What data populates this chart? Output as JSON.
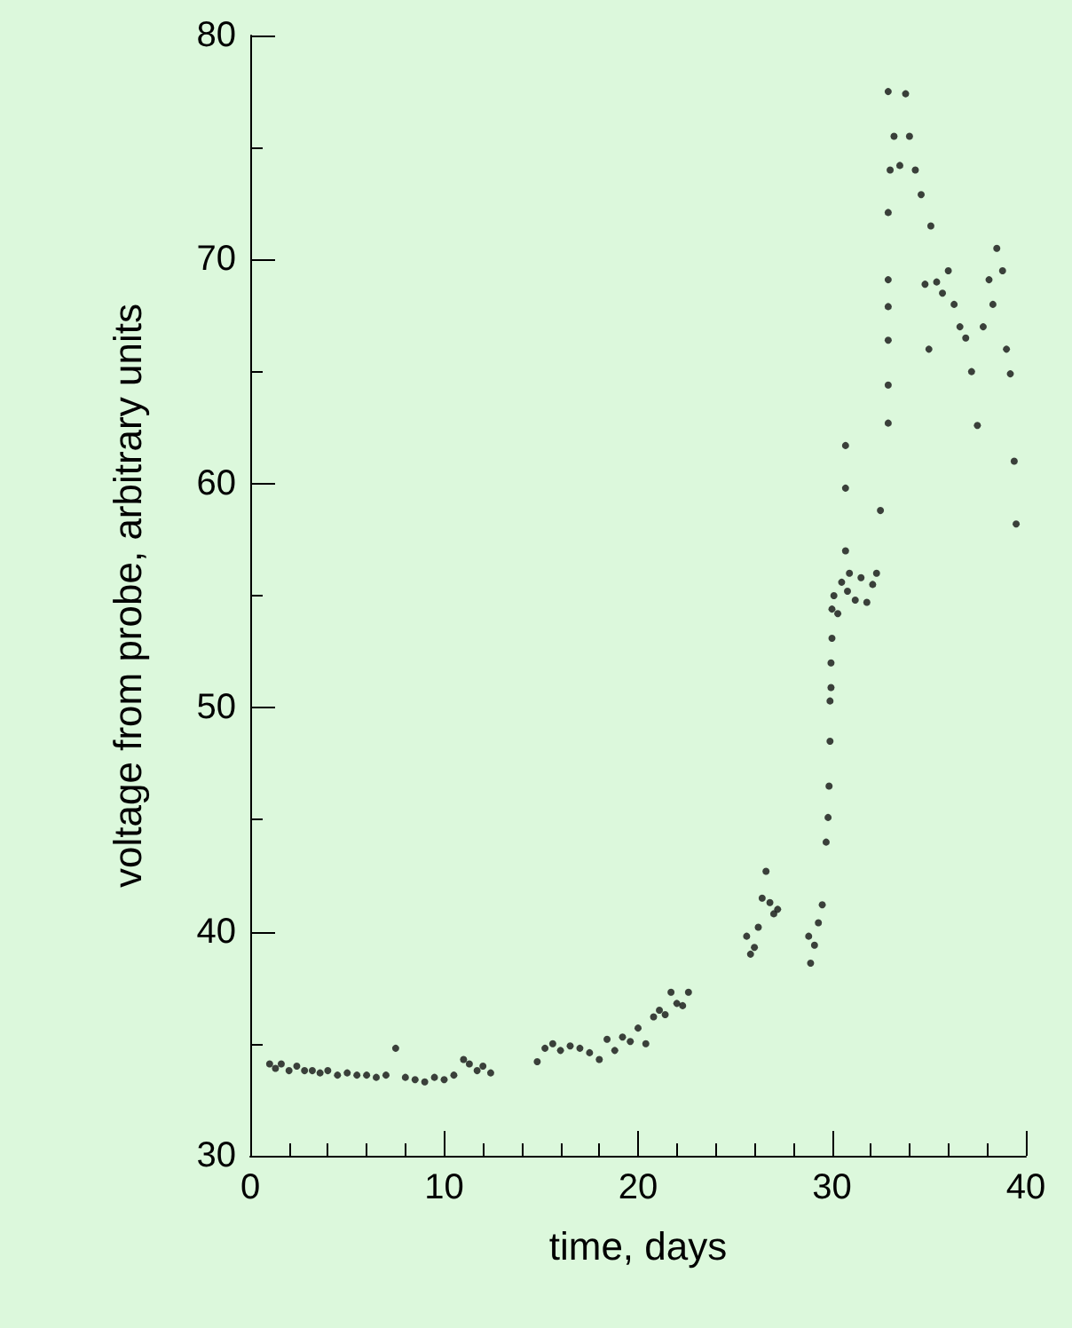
{
  "chart_data": {
    "type": "scatter",
    "xlabel": "time, days",
    "ylabel": "voltage from probe, arbitrary units",
    "xlim": [
      0,
      40
    ],
    "xticks": [
      0,
      10,
      20,
      30,
      40
    ],
    "ylim": [
      30,
      80
    ],
    "yticks": [
      30,
      40,
      50,
      60,
      70,
      80
    ],
    "grid": false,
    "marker": "circle",
    "series": [
      {
        "color": "#111111",
        "x": [
          1,
          1.3,
          1.6,
          2,
          2.4,
          2.8,
          3.2,
          3.6,
          4,
          4.5,
          5,
          5.5,
          6,
          6.5,
          7,
          7.5,
          8,
          8.5,
          9,
          9.5,
          10,
          10.5,
          11,
          11.3,
          11.7,
          12,
          12.4,
          14.8,
          15.2,
          15.6,
          16,
          16.5,
          17,
          17.5,
          18,
          18.4,
          18.8,
          19.2,
          19.6,
          20,
          20.4,
          20.8,
          21.1,
          21.4,
          21.7,
          22,
          22.3,
          22.6,
          25.6,
          25.8,
          26,
          26.2,
          26.4,
          26.6,
          26.8,
          27,
          27.2,
          28.8,
          28.9,
          29.1,
          29.3,
          29.5,
          29.7,
          29.8,
          29.85,
          29.9,
          29.9,
          29.95,
          29.95,
          30,
          30,
          30.1,
          30.3,
          30.5,
          30.7,
          30.7,
          30.7,
          30.8,
          30.9,
          31.2,
          31.5,
          31.8,
          32.1,
          32.3,
          32.5,
          32.9,
          32.9,
          32.9,
          32.9,
          32.9,
          32.9,
          32.9,
          33,
          33.2,
          33.5,
          33.8,
          34,
          34.3,
          34.6,
          34.8,
          35,
          35.1,
          35.4,
          35.7,
          36,
          36.3,
          36.6,
          36.9,
          37.2,
          37.5,
          37.8,
          38.1,
          38.3,
          38.5,
          38.8,
          39,
          39.2,
          39.4,
          39.5
        ],
        "values": [
          34.1,
          33.9,
          34.1,
          33.8,
          34,
          33.8,
          33.8,
          33.7,
          33.8,
          33.6,
          33.7,
          33.6,
          33.6,
          33.5,
          33.6,
          34.8,
          33.5,
          33.4,
          33.3,
          33.5,
          33.4,
          33.6,
          34.3,
          34.1,
          33.8,
          34,
          33.7,
          34.2,
          34.8,
          35,
          34.7,
          34.9,
          34.8,
          34.6,
          34.3,
          35.2,
          34.7,
          35.3,
          35.1,
          35.7,
          35,
          36.2,
          36.5,
          36.3,
          37.3,
          36.8,
          36.7,
          37.3,
          39.8,
          39,
          39.3,
          40.2,
          41.5,
          42.7,
          41.3,
          40.8,
          41,
          39.8,
          38.6,
          39.4,
          40.4,
          41.2,
          44,
          45.1,
          46.5,
          48.5,
          50.3,
          50.9,
          52,
          53.1,
          54.4,
          55,
          54.2,
          55.6,
          57,
          59.8,
          61.7,
          55.2,
          56,
          54.8,
          55.8,
          54.7,
          55.5,
          56,
          58.8,
          62.7,
          64.4,
          66.4,
          67.9,
          69.1,
          72.1,
          77.5,
          74,
          75.5,
          74.2,
          77.4,
          75.5,
          74,
          72.9,
          68.9,
          66,
          71.5,
          69,
          68.5,
          69.5,
          68,
          67,
          66.5,
          65,
          62.6,
          67,
          69.1,
          68,
          70.5,
          69.5,
          66,
          64.9,
          61,
          58.2
        ]
      }
    ]
  }
}
